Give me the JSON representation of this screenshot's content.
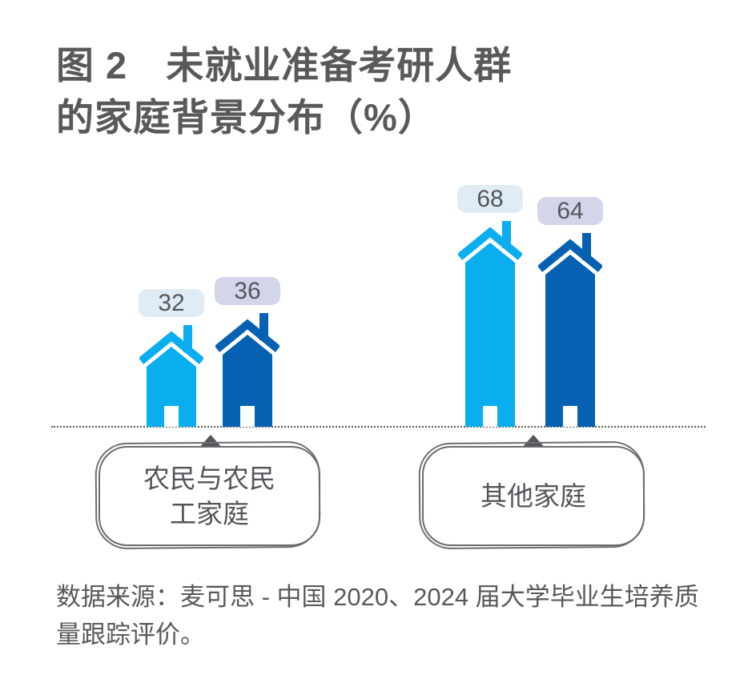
{
  "title": {
    "line1": "图 2　未就业准备考研人群",
    "line2": "的家庭背景分布（%）"
  },
  "source": "数据来源：麦可思 - 中国 2020、2024 届大学毕业生培养质量跟踪评价。",
  "colors": {
    "title_text": "#58595B",
    "baseline": "#55565A",
    "box_border": "#6B6C6F",
    "pointer_triangle": "#55565A",
    "badge_text": "#55565B",
    "light_blue": "#0AAEEF",
    "dark_blue": "#0661B2",
    "badge_bg_light": "#E0ECF5",
    "badge_bg_lavender": "#D3D6E9"
  },
  "chart_data": {
    "type": "bar",
    "subtype": "pictogram-houses",
    "title": "图 2　未就业准备考研人群的家庭背景分布（%）",
    "unit": "%",
    "ylim": [
      0,
      100
    ],
    "grid": false,
    "legend_position": "none",
    "categories": [
      "农民与农民工家庭",
      "其他家庭"
    ],
    "category_label_lines": [
      [
        "农民与农民",
        "工家庭"
      ],
      [
        "其他家庭"
      ]
    ],
    "series": [
      {
        "name": "light-blue-houses",
        "color": "#0AAEEF",
        "badge_bg": "#E0ECF5",
        "values": [
          32,
          68
        ]
      },
      {
        "name": "dark-blue-houses",
        "color": "#0661B2",
        "badge_bg": "#D3D6E9",
        "values": [
          36,
          64
        ]
      }
    ],
    "value_labels": [
      32,
      36,
      68,
      64
    ]
  }
}
